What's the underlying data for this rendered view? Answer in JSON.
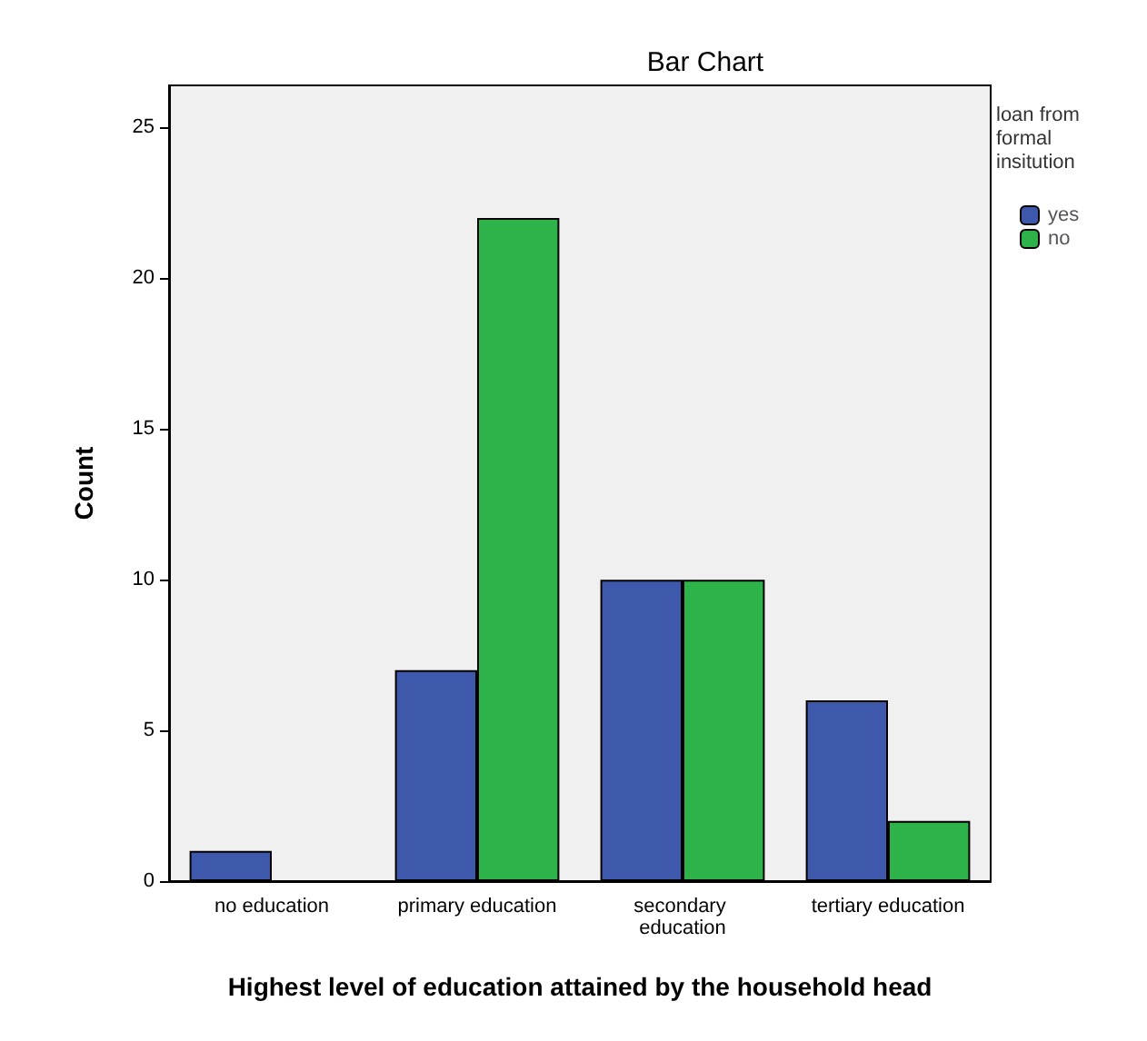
{
  "chart_data": {
    "type": "bar",
    "title": "Bar Chart",
    "xlabel": "Highest level of education attained by the household head",
    "ylabel": "Count",
    "legend_title": "loan from formal insitution",
    "categories": [
      "no education",
      "primary education",
      "secondary education",
      "tertiary education"
    ],
    "series": [
      {
        "name": "yes",
        "color": "#3e58ac",
        "values": [
          1,
          7,
          10,
          6
        ]
      },
      {
        "name": "no",
        "color": "#2db34a",
        "values": [
          0,
          22,
          10,
          2
        ]
      }
    ],
    "ylim": [
      0,
      26.4
    ],
    "yticks": [
      0,
      5,
      10,
      15,
      20,
      25
    ],
    "grid": false,
    "legend": "top right"
  }
}
